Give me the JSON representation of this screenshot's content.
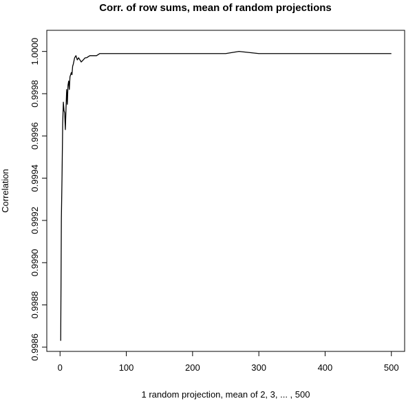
{
  "chart_data": {
    "type": "line",
    "title": "Corr. of row sums, mean of random projections",
    "xlabel": "1 random projection, mean of 2, 3, ... , 500",
    "ylabel": "Correlation",
    "xlim": [
      -20,
      520
    ],
    "ylim": [
      0.99858,
      1.0001
    ],
    "x_ticks": [
      0,
      100,
      200,
      300,
      400,
      500
    ],
    "x_tick_labels": [
      "0",
      "100",
      "200",
      "300",
      "400",
      "500"
    ],
    "y_ticks": [
      0.9986,
      0.9988,
      0.999,
      0.9992,
      0.9994,
      0.9996,
      0.9998,
      1.0
    ],
    "y_tick_labels": [
      "0.9986",
      "0.9988",
      "0.9990",
      "0.9992",
      "0.9994",
      "0.9996",
      "0.9998",
      "1.0000"
    ],
    "grid": false,
    "series": [
      {
        "color": "#000000",
        "x": [
          1,
          2,
          3,
          4,
          5,
          6,
          7,
          8,
          9,
          10,
          11,
          12,
          13,
          14,
          15,
          16,
          17,
          18,
          19,
          20,
          22,
          24,
          26,
          28,
          30,
          32,
          35,
          38,
          40,
          45,
          50,
          55,
          60,
          70,
          80,
          90,
          100,
          120,
          150,
          200,
          250,
          270,
          300,
          350,
          400,
          450,
          500
        ],
        "y": [
          0.99863,
          0.99921,
          0.99941,
          0.99966,
          0.99976,
          0.99972,
          0.99971,
          0.99963,
          0.99973,
          0.99982,
          0.99975,
          0.99984,
          0.99986,
          0.99982,
          0.99988,
          0.99989,
          0.9999,
          0.99989,
          0.99993,
          0.99994,
          0.99997,
          0.99998,
          0.99996,
          0.99997,
          0.99996,
          0.99995,
          0.99996,
          0.99997,
          0.99997,
          0.99998,
          0.99998,
          0.99998,
          0.99999,
          0.99999,
          0.99999,
          0.99999,
          0.99999,
          0.99999,
          0.99999,
          0.99999,
          0.99999,
          1.0,
          0.99999,
          0.99999,
          0.99999,
          0.99999,
          0.99999
        ]
      }
    ]
  }
}
